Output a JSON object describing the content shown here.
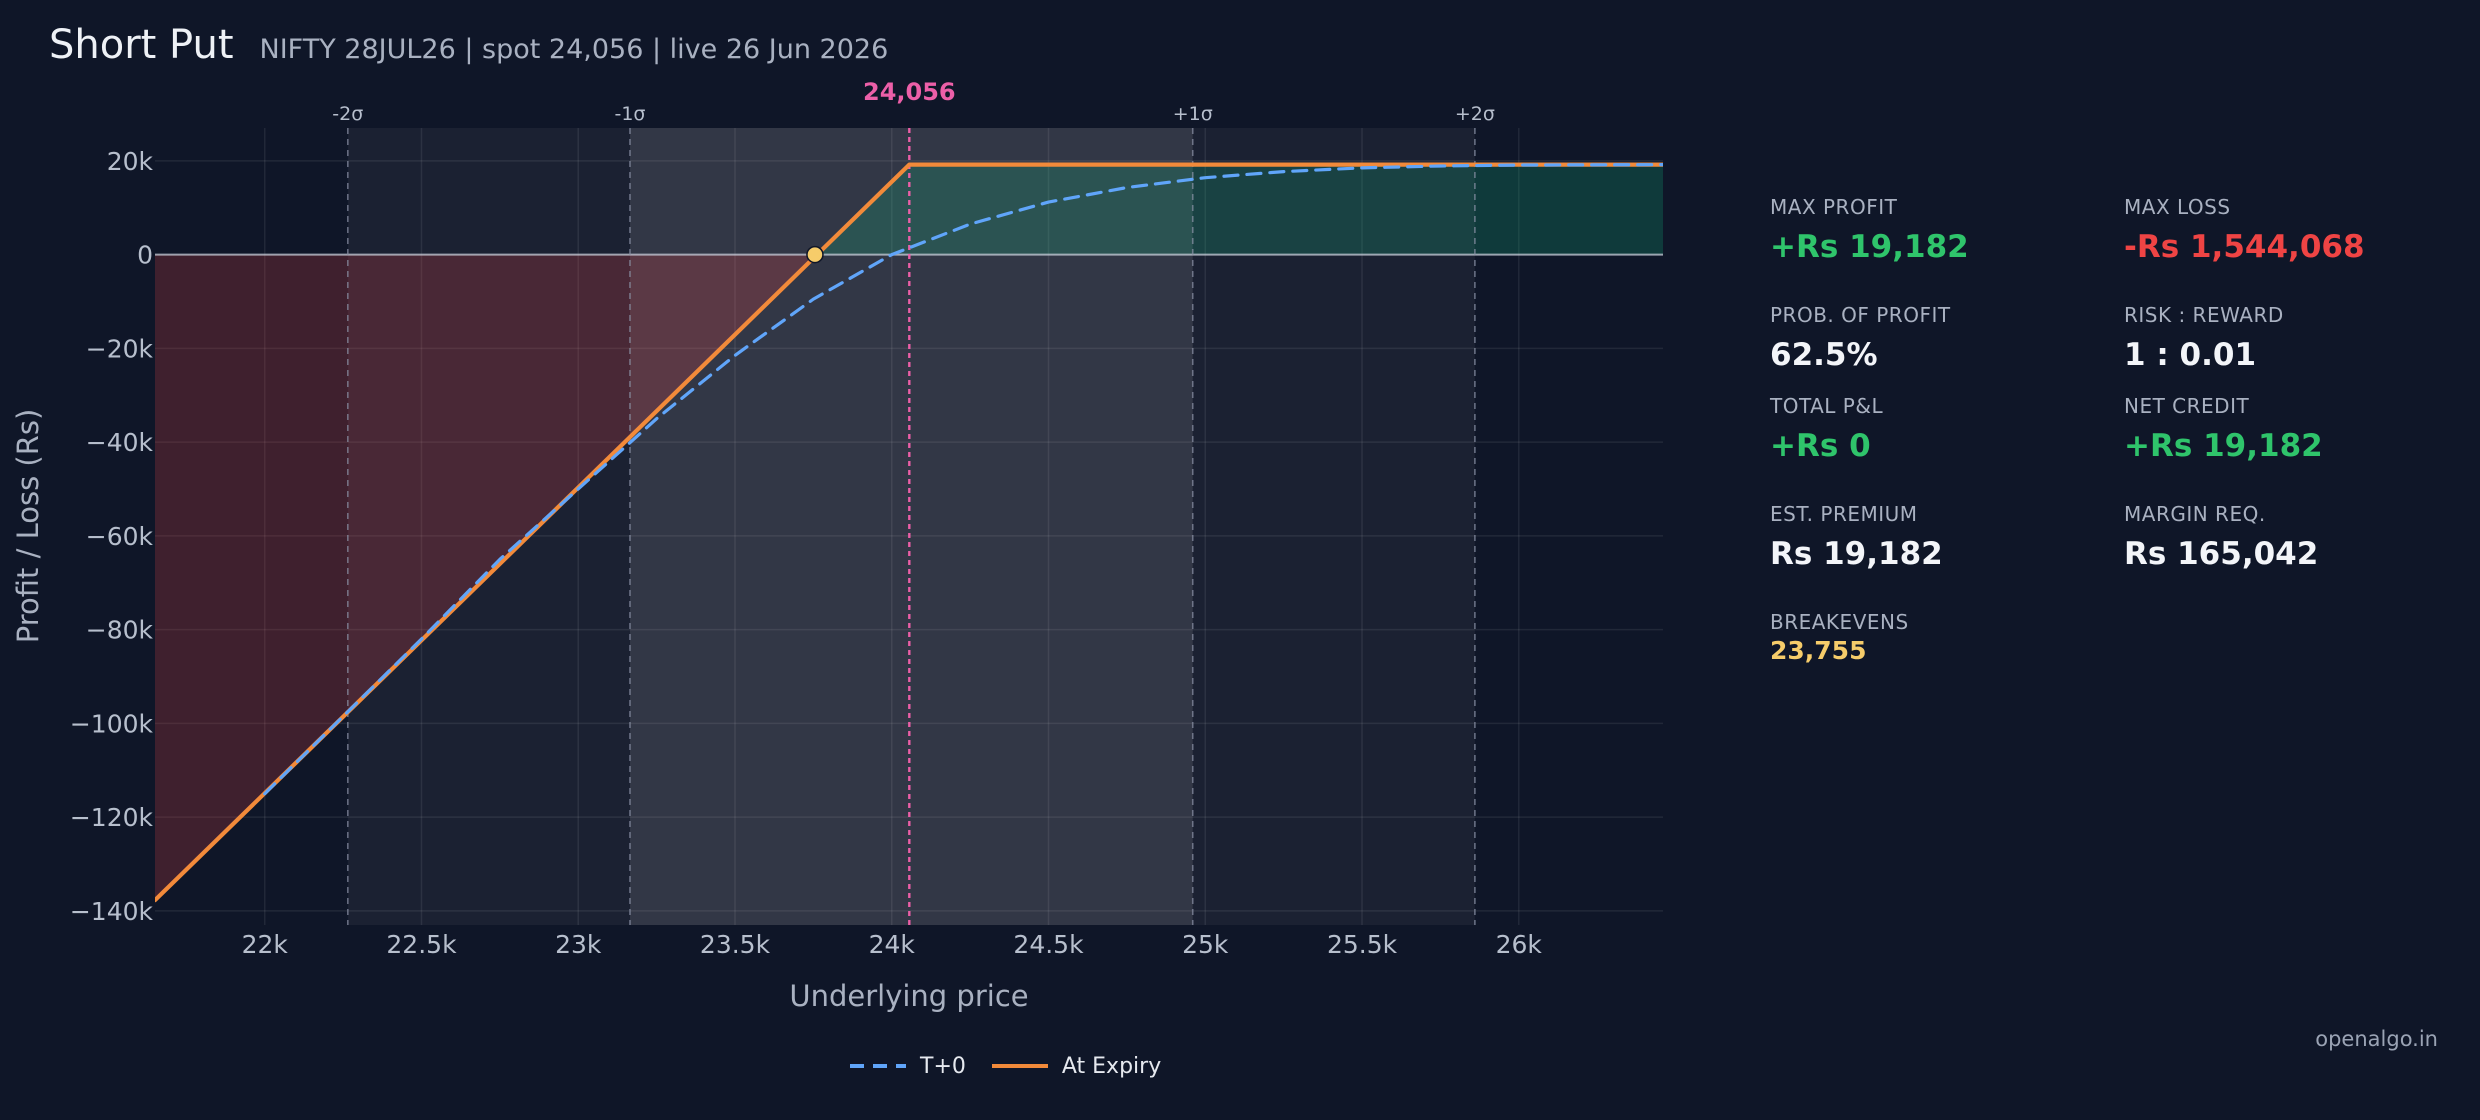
{
  "header": {
    "title": "Short Put",
    "subtitle": "NIFTY 28JUL26  |  spot 24,056  |  live 26 Jun 2026"
  },
  "stats": {
    "max_profit": {
      "label": "MAX PROFIT",
      "value": "+Rs 19,182"
    },
    "max_loss": {
      "label": "MAX LOSS",
      "value": "-Rs 1,544,068"
    },
    "prob_profit": {
      "label": "PROB. OF PROFIT",
      "value": "62.5%"
    },
    "risk_reward": {
      "label": "RISK : REWARD",
      "value": "1 : 0.01"
    },
    "total_pnl": {
      "label": "TOTAL P&L",
      "value": "+Rs 0"
    },
    "net_credit": {
      "label": "NET CREDIT",
      "value": "+Rs 19,182"
    },
    "est_premium": {
      "label": "EST. PREMIUM",
      "value": "Rs 19,182"
    },
    "margin_req": {
      "label": "MARGIN REQ.",
      "value": "Rs 165,042"
    },
    "breakevens": {
      "label": "BREAKEVENS",
      "value": "23,755"
    }
  },
  "footer": {
    "brand": "openalgo.in"
  },
  "chart_data": {
    "type": "line",
    "xlabel": "Underlying price",
    "ylabel": "Profit / Loss (Rs)",
    "xlim": [
      21650,
      26460
    ],
    "ylim": [
      -143000,
      27000
    ],
    "x_ticks": [
      {
        "value": 22000,
        "label": "22k"
      },
      {
        "value": 22500,
        "label": "22.5k"
      },
      {
        "value": 23000,
        "label": "23k"
      },
      {
        "value": 23500,
        "label": "23.5k"
      },
      {
        "value": 24000,
        "label": "24k"
      },
      {
        "value": 24500,
        "label": "24.5k"
      },
      {
        "value": 25000,
        "label": "25k"
      },
      {
        "value": 25500,
        "label": "25.5k"
      },
      {
        "value": 26000,
        "label": "26k"
      }
    ],
    "y_ticks": [
      {
        "value": 20000,
        "label": "20k"
      },
      {
        "value": 0,
        "label": "0"
      },
      {
        "value": -20000,
        "label": "−20k"
      },
      {
        "value": -40000,
        "label": "−40k"
      },
      {
        "value": -60000,
        "label": "−60k"
      },
      {
        "value": -80000,
        "label": "−80k"
      },
      {
        "value": -100000,
        "label": "−100k"
      },
      {
        "value": -120000,
        "label": "−120k"
      },
      {
        "value": -140000,
        "label": "−140k"
      }
    ],
    "spot": {
      "value": 24056,
      "label": "24,056",
      "color": "#ec5fa8"
    },
    "sigma_lines": [
      {
        "value": 22265,
        "label": "-2σ"
      },
      {
        "value": 23165,
        "label": "-1σ"
      },
      {
        "value": 24960,
        "label": "+1σ"
      },
      {
        "value": 25860,
        "label": "+2σ"
      }
    ],
    "breakeven_point": {
      "x": 23755,
      "y": 0,
      "color": "#f6cc6a"
    },
    "series": [
      {
        "name": "At Expiry",
        "color": "#f28a3a",
        "style": "solid",
        "x": [
          21650,
          24056,
          26460
        ],
        "y": [
          -137700,
          19182,
          19182
        ]
      },
      {
        "name": "T+0",
        "color": "#60a5fa",
        "style": "dashed",
        "x": [
          22000,
          22500,
          22750,
          23000,
          23250,
          23500,
          23750,
          24000,
          24250,
          24500,
          24750,
          25000,
          25250,
          25500,
          25750,
          26000,
          26460
        ],
        "y": [
          -115000,
          -82000,
          -65000,
          -50000,
          -35000,
          -21500,
          -9500,
          0,
          6500,
          11200,
          14300,
          16400,
          17700,
          18500,
          18900,
          19100,
          19182
        ]
      }
    ],
    "legend": {
      "placement": "bottom-center"
    }
  }
}
